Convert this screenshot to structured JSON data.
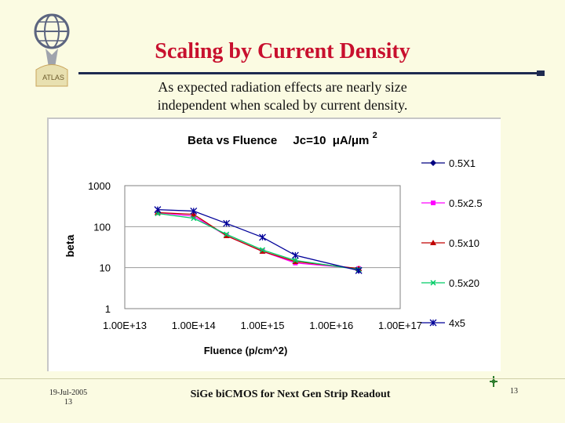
{
  "slide": {
    "logo_text": "ATLAS",
    "title": "Scaling by Current Density",
    "subtitle_line1": "As expected radiation effects are nearly size",
    "subtitle_line2": "independent when scaled by current density.",
    "footer_date": "19-Jul-2005",
    "footer_page_left": "13",
    "footer_center": "SiGe biCMOS for Next Gen Strip Readout",
    "footer_page_right": "13"
  },
  "chart_data": {
    "type": "line",
    "title_main": "Beta vs Fluence",
    "title_jc": "Jc=10",
    "title_unit": "μA/μm",
    "title_sup": "2",
    "xlabel": "Fluence (p/cm^2)",
    "ylabel": "beta",
    "x_scale": "log",
    "y_scale": "log",
    "xlim": [
      10000000000000.0,
      1e+17
    ],
    "ylim": [
      1,
      1000
    ],
    "x_tick_labels": [
      "1.00E+13",
      "1.00E+14",
      "1.00E+15",
      "1.00E+16",
      "1.00E+17"
    ],
    "y_tick_labels": [
      "1",
      "10",
      "100",
      "1000"
    ],
    "grid": true,
    "legend_position": "right",
    "series": [
      {
        "name": "0.5X1",
        "color": "#000080",
        "marker": "diamond",
        "x": [
          2.5e+16
        ],
        "y": [
          8.5
        ]
      },
      {
        "name": "0.5x2.5",
        "color": "#ff00ff",
        "marker": "square",
        "x": [
          30000000000000.0,
          100000000000000.0,
          300000000000000.0,
          1000000000000000.0,
          3000000000000000.0,
          2.5e+16
        ],
        "y": [
          220,
          180,
          60,
          25,
          13,
          9.5
        ]
      },
      {
        "name": "0.5x10",
        "color": "#c00000",
        "marker": "triangle",
        "x": [
          30000000000000.0,
          100000000000000.0,
          300000000000000.0,
          1000000000000000.0,
          3000000000000000.0,
          2.5e+16
        ],
        "y": [
          220,
          200,
          60,
          25,
          14,
          9.5
        ]
      },
      {
        "name": "0.5x20",
        "color": "#00cc66",
        "marker": "x",
        "x": [
          30000000000000.0,
          100000000000000.0,
          300000000000000.0,
          1000000000000000.0,
          3000000000000000.0,
          2.5e+16
        ],
        "y": [
          210,
          160,
          65,
          27,
          15,
          9
        ]
      },
      {
        "name": "4x5",
        "color": "#000099",
        "marker": "star",
        "x": [
          30000000000000.0,
          100000000000000.0,
          300000000000000.0,
          1000000000000000.0,
          3000000000000000.0,
          2.5e+16
        ],
        "y": [
          260,
          240,
          120,
          55,
          20,
          8.5
        ]
      }
    ]
  }
}
